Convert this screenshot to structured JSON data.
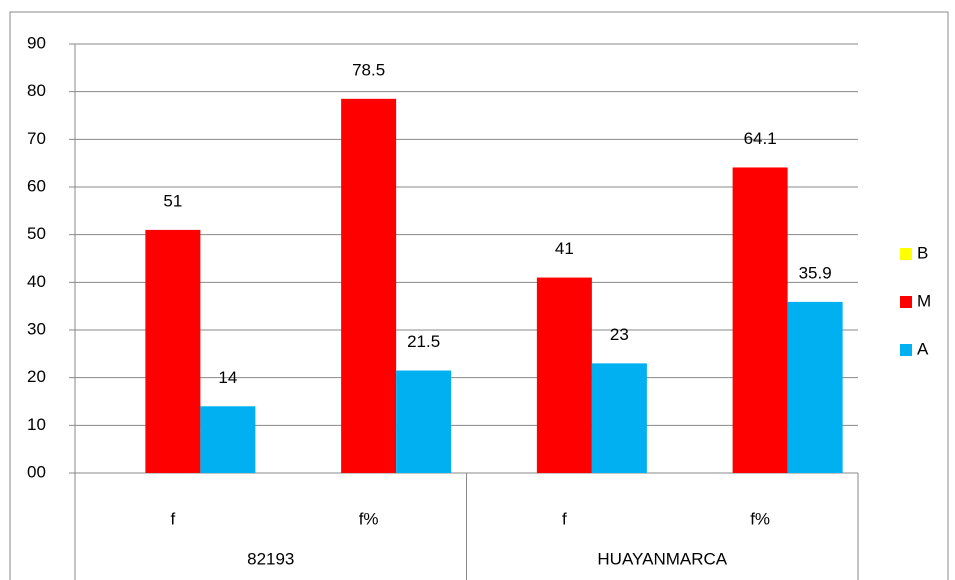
{
  "chart_data": {
    "type": "bar",
    "categories": [
      "f",
      "f%",
      "f",
      "f%"
    ],
    "category_groups": [
      "82193",
      "HUAYANMARCA"
    ],
    "series": [
      {
        "name": "B",
        "color": "#ffff00",
        "values": [
          null,
          null,
          null,
          null
        ]
      },
      {
        "name": "M",
        "color": "#ff0000",
        "values": [
          51,
          78.5,
          41,
          64.1
        ]
      },
      {
        "name": "A",
        "color": "#00b0f0",
        "values": [
          14,
          21.5,
          23,
          35.9
        ]
      }
    ],
    "ylim": [
      0,
      90
    ],
    "yticks": [
      {
        "value": 0,
        "label": "00"
      },
      10,
      20,
      30,
      40,
      50,
      60,
      70,
      80,
      90
    ],
    "grid": true,
    "legend": "right"
  }
}
